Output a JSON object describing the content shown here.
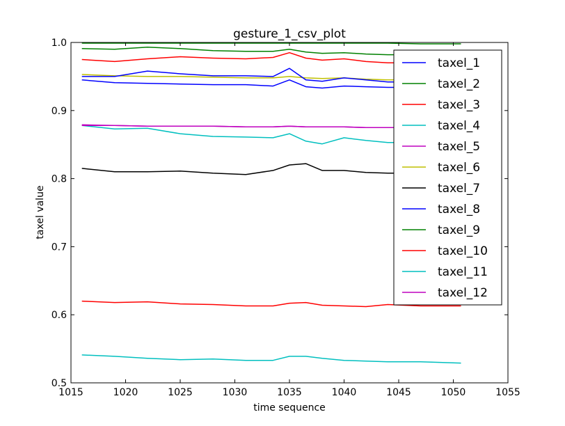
{
  "chart_data": {
    "type": "line",
    "title": "gesture_1_csv_plot",
    "xlabel": "time sequence",
    "ylabel": "taxel value",
    "xlim": [
      1015,
      1055
    ],
    "ylim": [
      0.5,
      1.0
    ],
    "x_ticks": [
      "1015",
      "1020",
      "1025",
      "1030",
      "1035",
      "1040",
      "1045",
      "1050",
      "1055"
    ],
    "y_ticks": [
      "0.5",
      "0.6",
      "0.7",
      "0.8",
      "0.9",
      "1.0"
    ],
    "grid": false,
    "legend_position": "top-right",
    "series": [
      {
        "name": "taxel_1",
        "color": "#0000ff",
        "x": [
          1016.0,
          1019.0,
          1022.0,
          1025.0,
          1028.0,
          1031.0,
          1033.5,
          1035.0,
          1036.5,
          1038.0,
          1040.0,
          1042.0,
          1044.0,
          1047.0,
          1050.7
        ],
        "y": [
          0.945,
          0.941,
          0.94,
          0.939,
          0.938,
          0.938,
          0.936,
          0.945,
          0.935,
          0.933,
          0.936,
          0.935,
          0.934,
          0.934,
          0.934
        ]
      },
      {
        "name": "taxel_2",
        "color": "#008000",
        "x": [
          1016.0,
          1019.0,
          1022.0,
          1025.0,
          1028.0,
          1031.0,
          1033.5,
          1035.0,
          1036.5,
          1038.0,
          1040.0,
          1042.0,
          1044.0,
          1047.0,
          1050.7
        ],
        "y": [
          0.999,
          0.999,
          0.999,
          0.999,
          0.999,
          0.999,
          0.999,
          0.999,
          0.999,
          0.999,
          0.999,
          0.999,
          0.999,
          0.998,
          0.998
        ]
      },
      {
        "name": "taxel_3",
        "color": "#ff0000",
        "x": [
          1016.0,
          1019.0,
          1022.0,
          1025.0,
          1028.0,
          1031.0,
          1033.5,
          1035.0,
          1036.5,
          1038.0,
          1040.0,
          1042.0,
          1044.0,
          1047.0,
          1050.7
        ],
        "y": [
          0.975,
          0.972,
          0.976,
          0.979,
          0.977,
          0.976,
          0.978,
          0.985,
          0.977,
          0.974,
          0.976,
          0.972,
          0.97,
          0.97,
          0.969
        ]
      },
      {
        "name": "taxel_4",
        "color": "#00bfbf",
        "x": [
          1016.0,
          1019.0,
          1022.0,
          1025.0,
          1028.0,
          1031.0,
          1033.5,
          1035.0,
          1036.5,
          1038.0,
          1040.0,
          1042.0,
          1044.0,
          1047.0,
          1050.7
        ],
        "y": [
          0.878,
          0.873,
          0.874,
          0.866,
          0.862,
          0.861,
          0.86,
          0.866,
          0.855,
          0.851,
          0.86,
          0.856,
          0.853,
          0.853,
          0.853
        ]
      },
      {
        "name": "taxel_5",
        "color": "#bf00bf",
        "x": [
          1016.0,
          1019.0,
          1022.0,
          1025.0,
          1028.0,
          1031.0,
          1033.5,
          1035.0,
          1036.5,
          1038.0,
          1040.0,
          1042.0,
          1044.0,
          1047.0,
          1050.7
        ],
        "y": [
          0.879,
          0.878,
          0.877,
          0.877,
          0.877,
          0.876,
          0.876,
          0.877,
          0.876,
          0.876,
          0.876,
          0.875,
          0.875,
          0.875,
          0.875
        ]
      },
      {
        "name": "taxel_6",
        "color": "#bfbf00",
        "x": [
          1016.0,
          1019.0,
          1022.0,
          1025.0,
          1028.0,
          1031.0,
          1033.5,
          1035.0,
          1036.5,
          1038.0,
          1040.0,
          1042.0,
          1044.0,
          1047.0,
          1050.7
        ],
        "y": [
          0.953,
          0.951,
          0.95,
          0.95,
          0.949,
          0.948,
          0.948,
          0.95,
          0.948,
          0.947,
          0.948,
          0.946,
          0.945,
          0.945,
          0.944
        ]
      },
      {
        "name": "taxel_7",
        "color": "#000000",
        "x": [
          1016.0,
          1019.0,
          1022.0,
          1025.0,
          1028.0,
          1031.0,
          1033.5,
          1035.0,
          1036.5,
          1038.0,
          1040.0,
          1042.0,
          1044.0,
          1047.0,
          1050.7
        ],
        "y": [
          0.815,
          0.81,
          0.81,
          0.811,
          0.808,
          0.806,
          0.812,
          0.82,
          0.822,
          0.812,
          0.812,
          0.809,
          0.808,
          0.808,
          0.808
        ]
      },
      {
        "name": "taxel_8",
        "color": "#0000ff",
        "x": [
          1016.0,
          1019.0,
          1022.0,
          1025.0,
          1028.0,
          1031.0,
          1033.5,
          1035.0,
          1036.5,
          1038.0,
          1040.0,
          1042.0,
          1044.0,
          1047.0,
          1050.7
        ],
        "y": [
          0.95,
          0.95,
          0.958,
          0.954,
          0.951,
          0.951,
          0.95,
          0.962,
          0.945,
          0.943,
          0.948,
          0.945,
          0.942,
          0.942,
          0.942
        ]
      },
      {
        "name": "taxel_9",
        "color": "#008000",
        "x": [
          1016.0,
          1019.0,
          1022.0,
          1025.0,
          1028.0,
          1031.0,
          1033.5,
          1035.0,
          1036.5,
          1038.0,
          1040.0,
          1042.0,
          1044.0,
          1047.0,
          1050.7
        ],
        "y": [
          0.991,
          0.99,
          0.993,
          0.991,
          0.988,
          0.987,
          0.987,
          0.99,
          0.986,
          0.984,
          0.985,
          0.983,
          0.982,
          0.982,
          0.982
        ]
      },
      {
        "name": "taxel_10",
        "color": "#ff0000",
        "x": [
          1016.0,
          1019.0,
          1022.0,
          1025.0,
          1028.0,
          1031.0,
          1033.5,
          1035.0,
          1036.5,
          1038.0,
          1040.0,
          1042.0,
          1044.0,
          1047.0,
          1050.7
        ],
        "y": [
          0.62,
          0.618,
          0.619,
          0.616,
          0.615,
          0.613,
          0.613,
          0.617,
          0.618,
          0.614,
          0.613,
          0.612,
          0.615,
          0.613,
          0.613
        ]
      },
      {
        "name": "taxel_11",
        "color": "#00bfbf",
        "x": [
          1016.0,
          1019.0,
          1022.0,
          1025.0,
          1028.0,
          1031.0,
          1033.5,
          1035.0,
          1036.5,
          1038.0,
          1040.0,
          1042.0,
          1044.0,
          1047.0,
          1050.7
        ],
        "y": [
          0.541,
          0.539,
          0.536,
          0.534,
          0.535,
          0.533,
          0.533,
          0.539,
          0.539,
          0.536,
          0.533,
          0.532,
          0.531,
          0.531,
          0.529
        ]
      },
      {
        "name": "taxel_12",
        "color": "#bf00bf",
        "x": [
          1016.0,
          1019.0,
          1022.0,
          1025.0,
          1028.0,
          1031.0,
          1033.5,
          1035.0,
          1036.5,
          1038.0,
          1040.0,
          1042.0,
          1044.0,
          1047.0,
          1050.7
        ],
        "y": [
          0.878,
          0.878,
          0.877,
          0.877,
          0.877,
          0.876,
          0.876,
          0.877,
          0.876,
          0.876,
          0.876,
          0.875,
          0.875,
          0.875,
          0.875
        ]
      }
    ]
  }
}
